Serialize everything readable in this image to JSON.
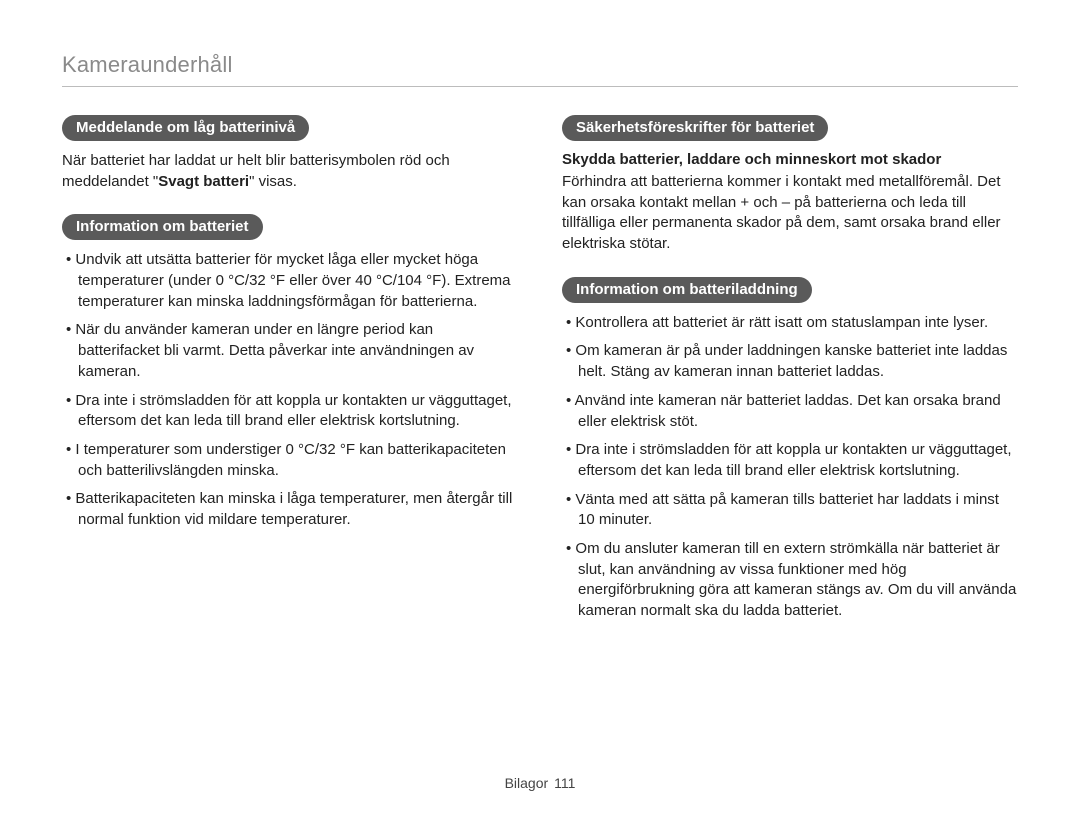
{
  "page_title": "Kameraunderhåll",
  "footer": {
    "label": "Bilagor",
    "page_num": "111"
  },
  "left": {
    "sec1": {
      "heading": "Meddelande om låg batterinivå",
      "para_pre": "När batteriet har laddat ur helt blir batterisymbolen röd och meddelandet \"",
      "para_bold": "Svagt batteri",
      "para_post": "\" visas."
    },
    "sec2": {
      "heading": "Information om batteriet",
      "items": [
        "Undvik att utsätta batterier för mycket låga eller mycket höga temperaturer (under 0 °C/32 °F eller över 40 °C/104 °F). Extrema temperaturer kan minska laddningsförmågan för batterierna.",
        "När du använder kameran under en längre period kan batterifacket bli varmt. Detta påverkar inte användningen av kameran.",
        "Dra inte i strömsladden för att koppla ur kontakten ur vägguttaget, eftersom det kan leda till brand eller elektrisk kortslutning.",
        "I temperaturer som understiger 0 °C/32 °F kan batterikapaciteten och batterilivslängden minska.",
        "Batterikapaciteten kan minska i låga temperaturer, men återgår till normal funktion vid mildare temperaturer."
      ]
    }
  },
  "right": {
    "sec1": {
      "heading": "Säkerhetsföreskrifter för batteriet",
      "subhead": "Skydda batterier, laddare och minneskort mot skador",
      "para": "Förhindra att batterierna kommer i kontakt med metallföremål. Det kan orsaka kontakt mellan + och – på batterierna och leda till tillfälliga eller permanenta skador på dem, samt orsaka brand eller elektriska stötar."
    },
    "sec2": {
      "heading": "Information om batteriladdning",
      "items": [
        "Kontrollera att batteriet är rätt isatt om statuslampan inte lyser.",
        "Om kameran är på under laddningen kanske batteriet inte laddas helt. Stäng av kameran innan batteriet laddas.",
        "Använd inte kameran när batteriet laddas. Det kan orsaka brand eller elektrisk stöt.",
        "Dra inte i strömsladden för att koppla ur kontakten ur vägguttaget, eftersom det kan leda till brand eller elektrisk kortslutning.",
        "Vänta med att sätta på kameran tills batteriet har laddats i minst 10 minuter.",
        "Om du ansluter kameran till en extern strömkälla när batteriet är slut, kan användning av vissa funktioner med hög energiförbrukning göra att kameran stängs av. Om du vill använda kameran normalt ska du ladda batteriet."
      ]
    }
  }
}
